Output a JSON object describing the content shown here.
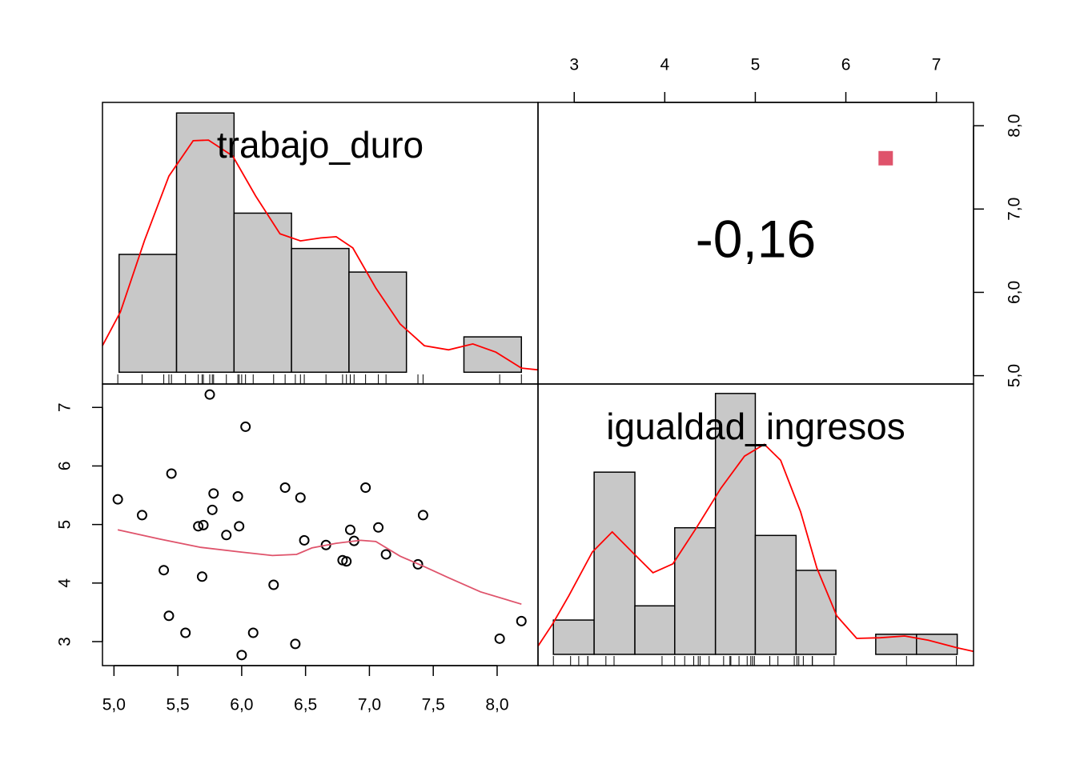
{
  "chart_data": [
    {
      "type": "histogram",
      "title": "trabajo_duro",
      "bins": [
        5.04,
        5.49,
        5.94,
        6.39,
        6.84,
        7.29,
        7.74,
        8.19
      ],
      "values": [
        0.2,
        0.44,
        0.27,
        0.21,
        0.17,
        0,
        0.06
      ],
      "color": "#C8C8C8",
      "density": {
        "x": [
          4.91,
          5.05,
          5.24,
          5.43,
          5.62,
          5.74,
          5.93,
          6.11,
          6.3,
          6.46,
          6.62,
          6.74,
          6.87,
          7.05,
          7.24,
          7.43,
          7.62,
          7.81,
          7.99,
          8.19,
          8.32
        ],
        "values": [
          0.045,
          0.102,
          0.224,
          0.333,
          0.393,
          0.394,
          0.367,
          0.299,
          0.235,
          0.223,
          0.228,
          0.23,
          0.211,
          0.143,
          0.082,
          0.045,
          0.038,
          0.048,
          0.034,
          0.007,
          0.004
        ],
        "color": "#FF0000"
      },
      "xlim": [
        4.91,
        8.32
      ],
      "ylim": [
        -0.02,
        0.458
      ]
    },
    {
      "type": "correlation",
      "values": [
        -0.16
      ],
      "value_labels": [
        "-0,16"
      ],
      "marker": {
        "x": 6.44,
        "y": 7.61,
        "color": "#DF536B"
      },
      "xlim": [
        2.6,
        7.41
      ],
      "ylim": [
        4.9,
        8.28
      ],
      "xticks": [
        3,
        4,
        5,
        6,
        7
      ],
      "yticks": [
        {
          "value": 5,
          "label": "5,0"
        },
        {
          "value": 6,
          "label": "6,0"
        },
        {
          "value": 7,
          "label": "7,0"
        },
        {
          "value": 8,
          "label": "8,0"
        }
      ]
    },
    {
      "type": "scatter",
      "x": [
        5.03,
        5.22,
        5.39,
        5.43,
        5.45,
        5.56,
        5.66,
        5.7,
        5.69,
        5.75,
        5.77,
        5.78,
        5.88,
        5.97,
        5.98,
        6.0,
        6.03,
        6.09,
        6.25,
        6.34,
        6.42,
        6.46,
        6.49,
        6.66,
        6.79,
        6.82,
        6.85,
        6.88,
        6.97,
        7.07,
        7.13,
        7.38,
        7.42,
        8.02,
        8.19
      ],
      "values": [
        5.43,
        5.16,
        4.22,
        3.44,
        5.87,
        3.15,
        4.97,
        4.99,
        4.11,
        7.22,
        5.25,
        5.53,
        4.82,
        5.48,
        4.97,
        2.77,
        6.67,
        3.15,
        3.97,
        5.63,
        2.96,
        5.46,
        4.73,
        4.65,
        4.39,
        4.37,
        4.91,
        4.72,
        5.63,
        4.95,
        4.49,
        4.32,
        5.16,
        3.05,
        3.35
      ],
      "smooth": {
        "x": [
          5.03,
          5.36,
          5.68,
          5.99,
          6.24,
          6.43,
          6.55,
          6.74,
          6.93,
          7.05,
          7.24,
          7.43,
          7.62,
          7.87,
          8.19
        ],
        "values": [
          4.91,
          4.75,
          4.61,
          4.53,
          4.47,
          4.49,
          4.6,
          4.68,
          4.73,
          4.71,
          4.46,
          4.28,
          4.09,
          3.85,
          3.64
        ],
        "color": "#DF536B"
      },
      "xlim": [
        4.91,
        8.32
      ],
      "ylim": [
        2.59,
        7.4
      ],
      "xticks": [
        {
          "value": 5,
          "label": "5,0"
        },
        {
          "value": 5.5,
          "label": "5,5"
        },
        {
          "value": 6,
          "label": "6,0"
        },
        {
          "value": 6.5,
          "label": "6,5"
        },
        {
          "value": 7,
          "label": "7,0"
        },
        {
          "value": 7.5,
          "label": "7,5"
        },
        {
          "value": 8,
          "label": "8,0"
        }
      ],
      "yticks": [
        3,
        4,
        5,
        6,
        7
      ]
    },
    {
      "type": "histogram",
      "title": "igualdad_ingresos",
      "bins": [
        2.77,
        3.22,
        3.67,
        4.11,
        4.56,
        5.0,
        5.45,
        5.89,
        6.33,
        6.78,
        7.23
      ],
      "values": [
        0.058,
        0.308,
        0.082,
        0.214,
        0.441,
        0.201,
        0.142,
        0,
        0.034,
        0.034
      ],
      "color": "#C8C8C8",
      "density": {
        "x": [
          2.6,
          2.76,
          2.94,
          3.2,
          3.42,
          3.64,
          3.87,
          4.09,
          4.35,
          4.62,
          4.88,
          5.1,
          5.28,
          5.5,
          5.68,
          5.9,
          6.12,
          6.38,
          6.65,
          6.91,
          7.23,
          7.41
        ],
        "values": [
          0.014,
          0.051,
          0.099,
          0.173,
          0.207,
          0.173,
          0.138,
          0.153,
          0.214,
          0.281,
          0.335,
          0.355,
          0.328,
          0.241,
          0.146,
          0.065,
          0.027,
          0.028,
          0.031,
          0.024,
          0.011,
          0.005
        ],
        "color": "#FF0000"
      },
      "xlim": [
        2.6,
        7.41
      ],
      "ylim": [
        -0.019,
        0.457
      ]
    }
  ]
}
